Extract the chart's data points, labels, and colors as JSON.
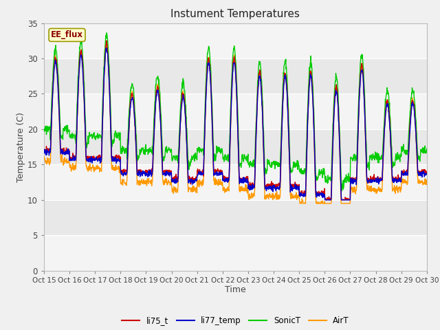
{
  "title": "Instument Temperatures",
  "xlabel": "Time",
  "ylabel": "Temperature (C)",
  "annotation": "EE_flux",
  "ylim": [
    0,
    35
  ],
  "yticks": [
    0,
    5,
    10,
    15,
    20,
    25,
    30,
    35
  ],
  "xtick_labels": [
    "Oct 15",
    "Oct 16",
    "Oct 17",
    "Oct 18",
    "Oct 19",
    "Oct 20",
    "Oct 21",
    "Oct 22",
    "Oct 23",
    "Oct 24",
    "Oct 25",
    "Oct 26",
    "Oct 27",
    "Oct 28",
    "Oct 29",
    "Oct 30"
  ],
  "legend_labels": [
    "li75_t",
    "li77_temp",
    "SonicT",
    "AirT"
  ],
  "line_colors": [
    "#cc0000",
    "#0000cc",
    "#00cc00",
    "#ff9900"
  ],
  "background_color": "#f0f0f0",
  "figsize": [
    6.4,
    4.8
  ],
  "dpi": 100
}
